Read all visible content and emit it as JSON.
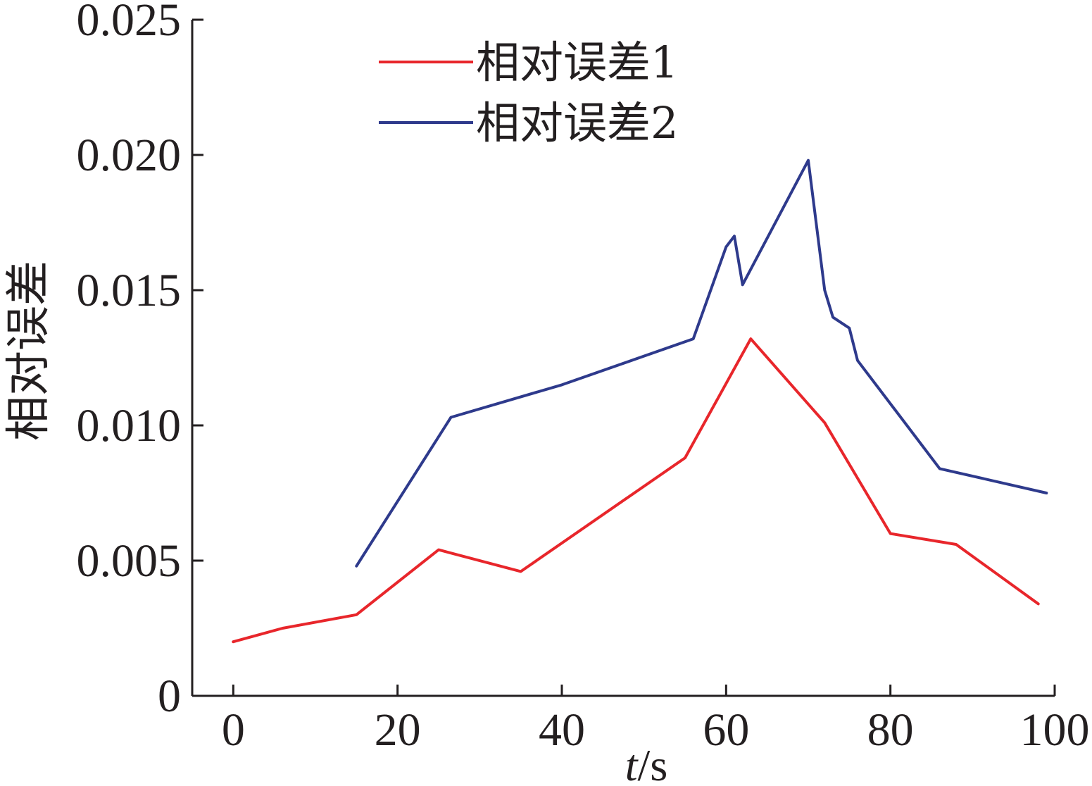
{
  "chart_data": {
    "type": "line",
    "xlabel_italic": "t",
    "xlabel_unit": "/s",
    "ylabel": "相对误差",
    "xlim": [
      -5,
      100
    ],
    "ylim": [
      0,
      0.025
    ],
    "xticks": [
      0,
      20,
      40,
      60,
      80,
      100
    ],
    "xtick_labels": [
      "0",
      "20",
      "40",
      "60",
      "80",
      "100"
    ],
    "yticks": [
      0,
      0.005,
      0.01,
      0.015,
      0.02,
      0.025
    ],
    "ytick_labels": [
      "0",
      "0.005",
      "0.010",
      "0.015",
      "0.020",
      "0.025"
    ],
    "grid": false,
    "legend_position": "top-center",
    "series": [
      {
        "name": "相对误差1",
        "color": "#e8262b",
        "points": [
          [
            0,
            0.002
          ],
          [
            6,
            0.0025
          ],
          [
            15,
            0.003
          ],
          [
            25,
            0.0054
          ],
          [
            35,
            0.0046
          ],
          [
            55,
            0.0088
          ],
          [
            63,
            0.0132
          ],
          [
            72,
            0.0101
          ],
          [
            80,
            0.006
          ],
          [
            88,
            0.0056
          ],
          [
            98,
            0.0034
          ]
        ]
      },
      {
        "name": "相对误差2",
        "color": "#2e3a8c",
        "points": [
          [
            15,
            0.0048
          ],
          [
            26.5,
            0.0103
          ],
          [
            40,
            0.0115
          ],
          [
            56,
            0.0132
          ],
          [
            60,
            0.0166
          ],
          [
            61,
            0.017
          ],
          [
            62,
            0.0152
          ],
          [
            70,
            0.0198
          ],
          [
            72,
            0.015
          ],
          [
            73,
            0.014
          ],
          [
            75,
            0.0136
          ],
          [
            76,
            0.0124
          ],
          [
            86,
            0.0084
          ],
          [
            99,
            0.0075
          ]
        ]
      }
    ]
  }
}
